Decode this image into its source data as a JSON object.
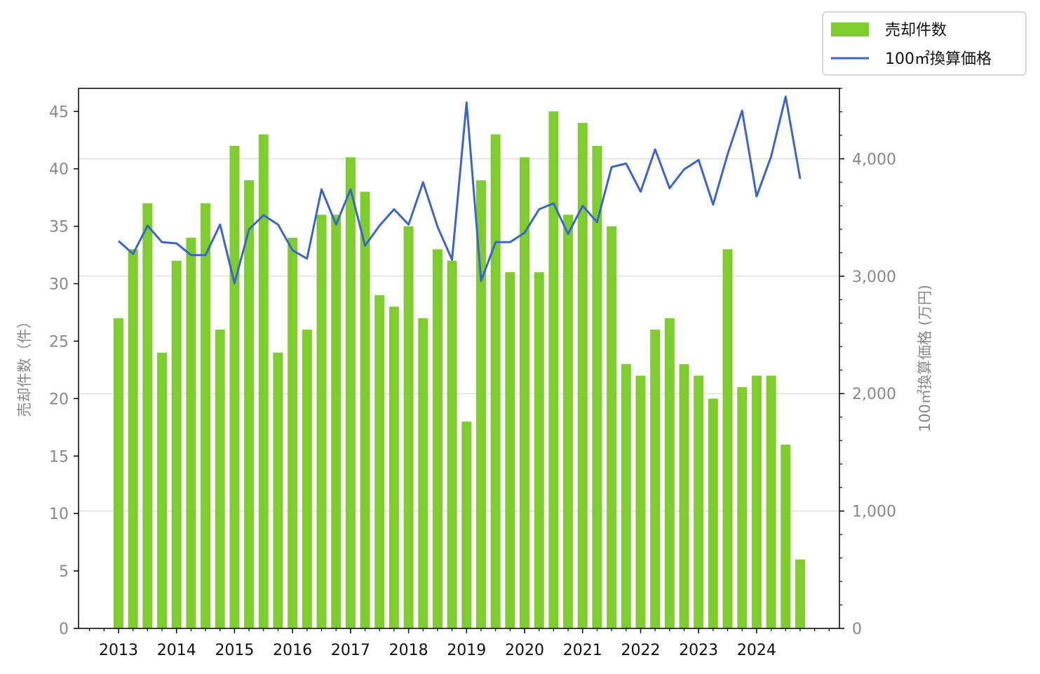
{
  "chart_data": {
    "type": "bar+line",
    "x_tick_labels": [
      "2013",
      "2014",
      "2015",
      "2016",
      "2017",
      "2018",
      "2019",
      "2020",
      "2021",
      "2022",
      "2023",
      "2024"
    ],
    "x_start_year": 2013,
    "series": [
      {
        "name": "売却件数",
        "type": "bar",
        "axis": "left",
        "color": "#7fcc2f",
        "values": [
          27,
          33,
          37,
          24,
          32,
          34,
          37,
          26,
          42,
          39,
          43,
          24,
          34,
          26,
          36,
          36,
          41,
          38,
          29,
          28,
          35,
          27,
          33,
          32,
          18,
          39,
          43,
          31,
          41,
          31,
          45,
          36,
          44,
          42,
          35,
          23,
          22,
          26,
          27,
          23,
          22,
          20,
          33,
          21,
          22,
          22,
          16,
          6
        ]
      },
      {
        "name": "100㎡換算価格",
        "type": "line",
        "axis": "right",
        "color": "#3a66c8",
        "values": [
          3300,
          3190,
          3430,
          3290,
          3280,
          3180,
          3180,
          3440,
          2940,
          3400,
          3520,
          3440,
          3220,
          3150,
          3740,
          3440,
          3740,
          3260,
          3430,
          3570,
          3440,
          3800,
          3420,
          3140,
          4480,
          2960,
          3290,
          3290,
          3370,
          3570,
          3620,
          3360,
          3600,
          3460,
          3930,
          3960,
          3720,
          4080,
          3750,
          3910,
          3990,
          3610,
          4040,
          4410,
          3680,
          4020,
          4530,
          3830
        ]
      }
    ],
    "y_left": {
      "label": "売却件数（件）",
      "range": [
        0,
        47
      ],
      "ticks": [
        0,
        5,
        10,
        15,
        20,
        25,
        30,
        35,
        40,
        45
      ],
      "tick_labels": [
        "0",
        "5",
        "10",
        "15",
        "20",
        "25",
        "30",
        "35",
        "40",
        "45"
      ]
    },
    "y_right": {
      "label": "100㎡換算価格 (万円)",
      "range": [
        0,
        4600
      ],
      "ticks": [
        0,
        1000,
        2000,
        3000,
        4000
      ],
      "tick_labels": [
        "0",
        "1,000",
        "2,000",
        "3,000",
        "4,000"
      ]
    },
    "grid": "horizontal, right axis major ticks",
    "legend": {
      "placement": "top-right, outside plot",
      "entries": [
        "売却件数",
        "100㎡換算価格"
      ]
    }
  }
}
